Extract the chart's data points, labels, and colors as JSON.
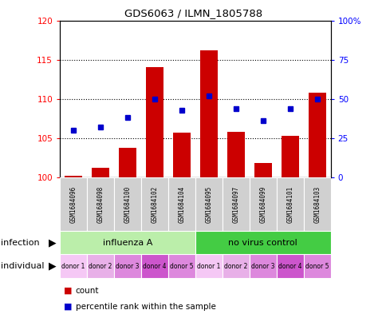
{
  "title": "GDS6063 / ILMN_1805788",
  "samples": [
    "GSM1684096",
    "GSM1684098",
    "GSM1684100",
    "GSM1684102",
    "GSM1684104",
    "GSM1684095",
    "GSM1684097",
    "GSM1684099",
    "GSM1684101",
    "GSM1684103"
  ],
  "counts": [
    100.2,
    101.2,
    103.8,
    114.0,
    105.7,
    116.2,
    105.8,
    101.8,
    105.3,
    110.8
  ],
  "percentiles_y2": [
    30,
    32,
    38,
    50,
    43,
    52,
    44,
    36,
    44,
    50
  ],
  "y_min": 100,
  "y_max": 120,
  "y_ticks": [
    100,
    105,
    110,
    115,
    120
  ],
  "y2_ticks": [
    0,
    25,
    50,
    75,
    100
  ],
  "bar_color": "#cc0000",
  "dot_color": "#0000cc",
  "infection_groups": [
    {
      "label": "influenza A",
      "start": 0,
      "end": 5,
      "color": "#bbeeaa"
    },
    {
      "label": "no virus control",
      "start": 5,
      "end": 10,
      "color": "#44cc44"
    }
  ],
  "individual_labels": [
    "donor 1",
    "donor 2",
    "donor 3",
    "donor 4",
    "donor 5",
    "donor 1",
    "donor 2",
    "donor 3",
    "donor 4",
    "donor 5"
  ],
  "individual_colors": [
    "#f5c8f5",
    "#e8b0e8",
    "#dd88dd",
    "#cc55cc",
    "#dd88dd",
    "#f5c8f5",
    "#e8b0e8",
    "#dd88dd",
    "#cc55cc",
    "#dd88dd"
  ],
  "sample_box_color": "#d0d0d0",
  "legend_count_color": "#cc0000",
  "legend_dot_color": "#0000cc"
}
